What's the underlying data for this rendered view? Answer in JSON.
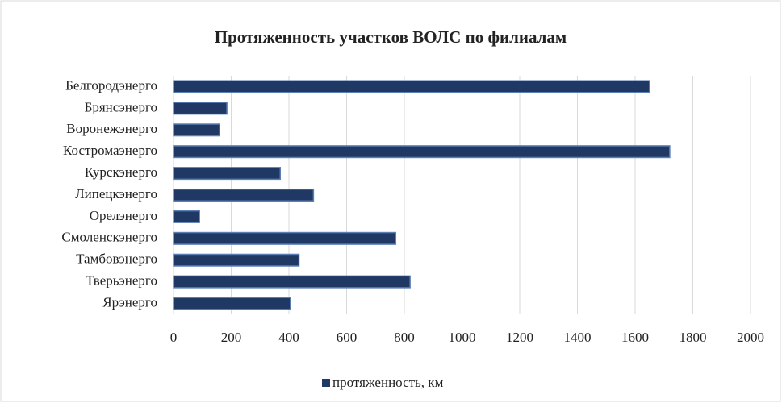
{
  "chart_data": {
    "type": "barh",
    "title": "Протяженность участков ВОЛС по филиалам",
    "categories": [
      "Белгородэнерго",
      "Брянсэнерго",
      "Воронежэнерго",
      "Костромаэнерго",
      "Курскэнерго",
      "Липецкэнерго",
      "Орелэнерго",
      "Смоленскэнерго",
      "Тамбовэнерго",
      "Тверьэнерго",
      "Ярэнерго"
    ],
    "series": [
      {
        "name": "протяженность, км",
        "color": "#1f3864",
        "values": [
          1650,
          185,
          160,
          1720,
          370,
          485,
          90,
          770,
          435,
          820,
          405
        ]
      }
    ],
    "xlim": [
      0,
      2000
    ],
    "xticks": [
      0,
      200,
      400,
      600,
      800,
      1000,
      1200,
      1400,
      1600,
      1800,
      2000
    ],
    "grid": true,
    "legend": "bottom"
  }
}
